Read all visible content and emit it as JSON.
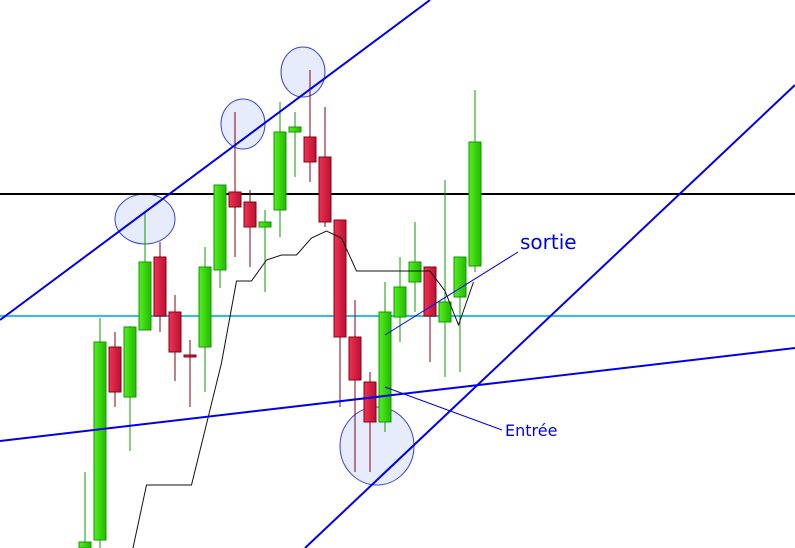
{
  "chart_data": {
    "type": "candlestick",
    "title": "",
    "xlabel": "",
    "ylabel": "",
    "grid": false,
    "axes_visible": false,
    "candles": [
      {
        "o": 0,
        "h": 76,
        "l": 0,
        "c": 6
      },
      {
        "o": 8,
        "h": 230,
        "l": 0,
        "c": 206
      },
      {
        "o": 201,
        "h": 216,
        "l": 141,
        "c": 156
      },
      {
        "o": 151,
        "h": 222,
        "l": 97,
        "c": 221
      },
      {
        "o": 218,
        "h": 335,
        "l": 218,
        "c": 286
      },
      {
        "o": 291,
        "h": 306,
        "l": 216,
        "c": 232
      },
      {
        "o": 236,
        "h": 253,
        "l": 167,
        "c": 196
      },
      {
        "o": 193,
        "h": 208,
        "l": 141,
        "c": 191
      },
      {
        "o": 201,
        "h": 301,
        "l": 156,
        "c": 281
      },
      {
        "o": 278,
        "h": 363,
        "l": 260,
        "c": 363
      },
      {
        "o": 356,
        "h": 436,
        "l": 291,
        "c": 341
      },
      {
        "o": 346,
        "h": 358,
        "l": 281,
        "c": 321
      },
      {
        "o": 321,
        "h": 338,
        "l": 256,
        "c": 326
      },
      {
        "o": 338,
        "h": 446,
        "l": 311,
        "c": 416
      },
      {
        "o": 416,
        "h": 436,
        "l": 371,
        "c": 421
      },
      {
        "o": 411,
        "h": 478,
        "l": 366,
        "c": 386
      },
      {
        "o": 391,
        "h": 441,
        "l": 321,
        "c": 326
      },
      {
        "o": 328,
        "h": 328,
        "l": 141,
        "c": 211
      },
      {
        "o": 211,
        "h": 248,
        "l": 76,
        "c": 168
      },
      {
        "o": 166,
        "h": 176,
        "l": 76,
        "c": 126
      },
      {
        "o": 126,
        "h": 266,
        "l": 116,
        "c": 236
      },
      {
        "o": 231,
        "h": 291,
        "l": 206,
        "c": 261
      },
      {
        "o": 266,
        "h": 326,
        "l": 236,
        "c": 286
      },
      {
        "o": 281,
        "h": 281,
        "l": 186,
        "c": 232
      },
      {
        "o": 226,
        "h": 368,
        "l": 171,
        "c": 246
      },
      {
        "o": 251,
        "h": 291,
        "l": 176,
        "c": 291
      },
      {
        "o": 282,
        "h": 458,
        "l": 276,
        "c": 406
      }
    ],
    "indicator_line": [
      [
        3.2,
        0
      ],
      [
        4.1,
        63
      ],
      [
        7.1,
        63
      ],
      [
        9.1,
        185
      ],
      [
        10.1,
        267
      ],
      [
        11.1,
        267
      ],
      [
        12.1,
        288
      ],
      [
        13.1,
        293
      ],
      [
        14.1,
        293
      ],
      [
        15.1,
        310
      ],
      [
        16.1,
        317
      ],
      [
        17.1,
        310
      ],
      [
        18.1,
        277
      ],
      [
        23.0,
        277
      ],
      [
        24.0,
        257
      ],
      [
        24.9,
        223
      ],
      [
        25.9,
        266
      ]
    ],
    "horizontal_levels": [
      {
        "value": 354,
        "color": "#000000"
      },
      {
        "value": 232,
        "color": "#33bbee"
      }
    ],
    "annotations": {
      "exit_label": "sortie",
      "entry_label": "Entrée"
    },
    "colors": {
      "bull": "#33cc11",
      "bear": "#dd2244",
      "trendline": "#0000ee",
      "highlight_circle": "#e6ecfb"
    }
  }
}
